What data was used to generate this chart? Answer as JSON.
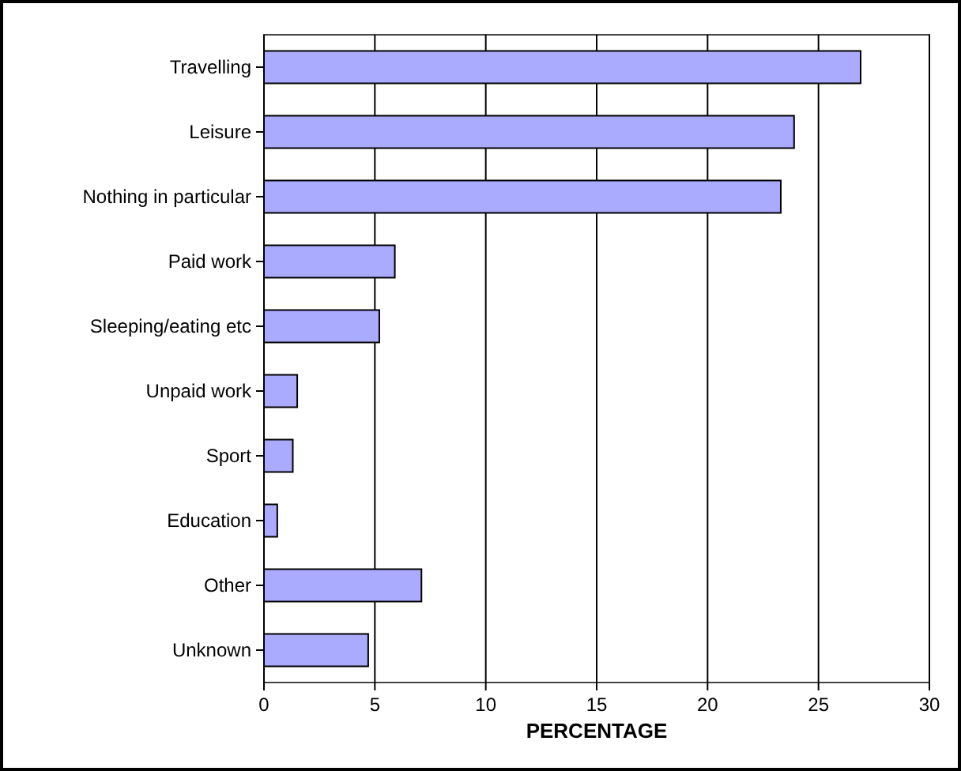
{
  "chart_data": {
    "type": "bar",
    "orientation": "horizontal",
    "xlabel": "PERCENTAGE",
    "categories": [
      "Travelling",
      "Leisure",
      "Nothing in particular",
      "Paid work",
      "Sleeping/eating etc",
      "Unpaid work",
      "Sport",
      "Education",
      "Other",
      "Unknown"
    ],
    "values": [
      26.9,
      23.9,
      23.3,
      5.9,
      5.2,
      1.5,
      1.3,
      0.6,
      7.1,
      4.7
    ],
    "color": "#aaaaff",
    "xlim": [
      0,
      30
    ],
    "xticks": [
      0,
      5,
      10,
      15,
      20,
      25,
      30
    ],
    "grid": "x"
  }
}
